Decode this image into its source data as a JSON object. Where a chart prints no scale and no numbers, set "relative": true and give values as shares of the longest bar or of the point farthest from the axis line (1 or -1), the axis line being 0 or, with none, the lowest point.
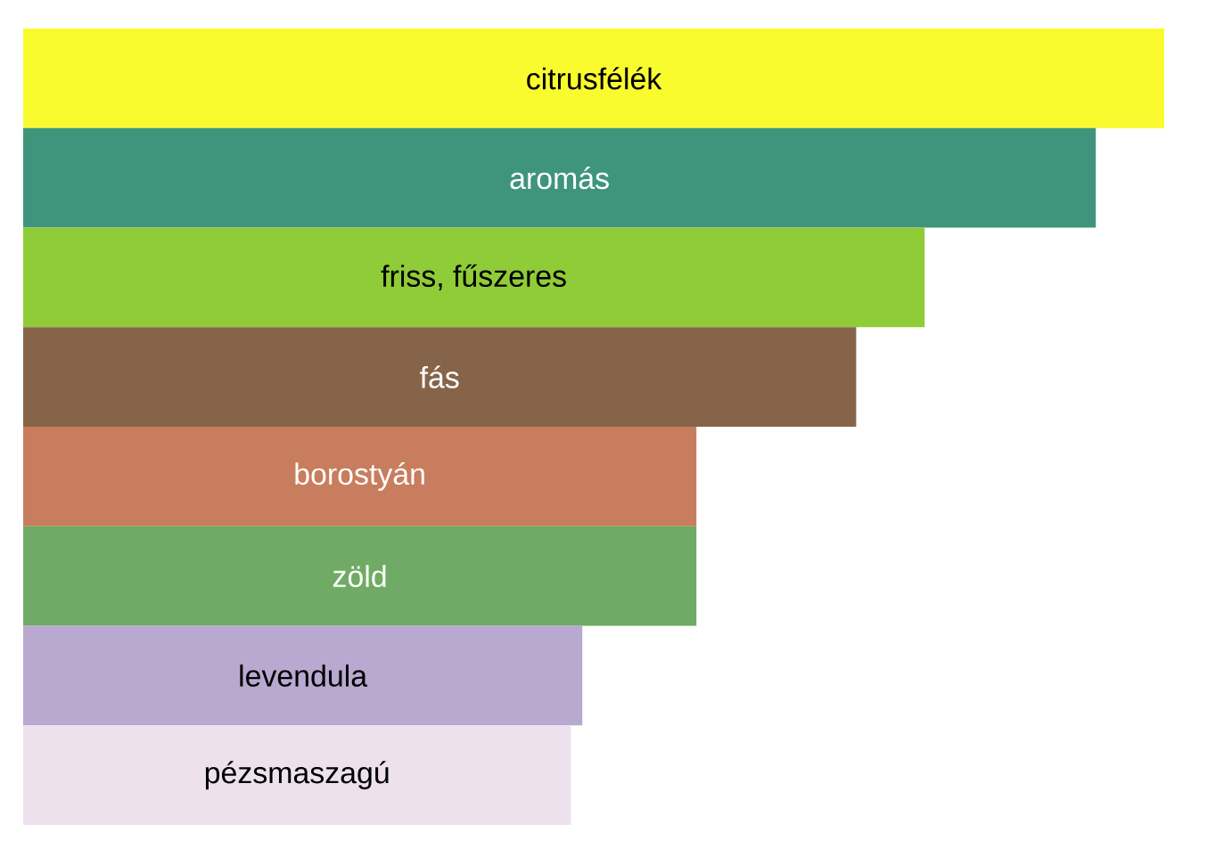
{
  "chart_data": {
    "type": "bar",
    "orientation": "horizontal",
    "relative": true,
    "categories": [
      "citrusfélék",
      "aromás",
      "friss, fűszeres",
      "fás",
      "borostyán",
      "zöld",
      "levendula",
      "pézsmaszagú"
    ],
    "values": [
      1,
      0.94,
      0.79,
      0.73,
      0.59,
      0.59,
      0.49,
      0.48
    ],
    "colors": [
      "#f9fb2e",
      "#3f957b",
      "#8fcc37",
      "#86644a",
      "#c87d5e",
      "#6fab65",
      "#b9a8d0",
      "#ede1ee"
    ]
  }
}
